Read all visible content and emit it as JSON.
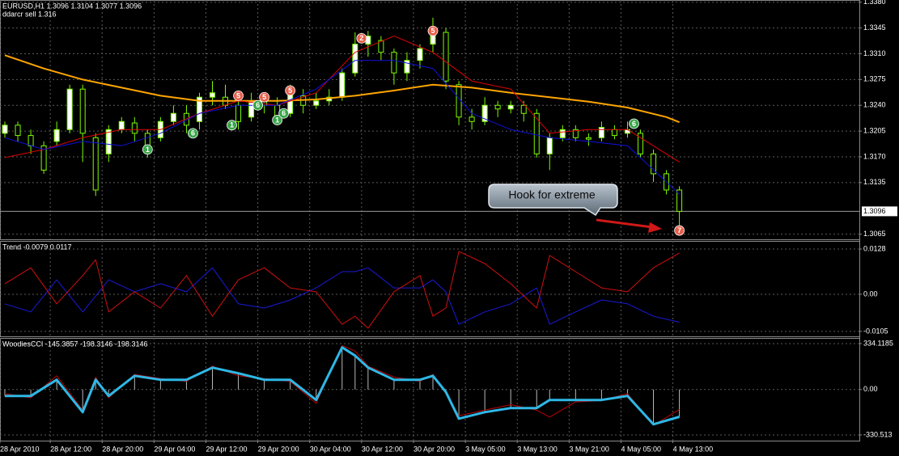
{
  "chart_data": [
    {
      "type": "candlestick",
      "title": "EURUSD,H1  1.3096 1.3104 1.3077 1.3096",
      "subtitle": "ddarcr sell 1.316",
      "annotation": "Hook for extreme",
      "xlim": [
        -0.75,
        131.75
      ],
      "ylim": [
        1.3058,
        1.3383
      ],
      "yticks": [
        {
          "value": 1.338,
          "label": "1.3380"
        },
        1.3345,
        {
          "value": 1.331,
          "label": "1.3310"
        },
        1.3275,
        {
          "value": 1.324,
          "label": "1.3240"
        },
        1.3205,
        {
          "value": 1.317,
          "label": "1.3170"
        },
        1.3135,
        1.3065
      ],
      "grid": true,
      "current_price": 1.3096,
      "up_color": "#ffffff",
      "down_color": "#000000",
      "wick_color": "#7cfc00",
      "x": [
        0,
        2,
        4,
        6,
        8,
        10,
        12,
        14,
        16,
        18,
        20,
        22,
        24,
        26,
        28,
        30,
        32,
        34,
        36,
        38,
        40,
        42,
        44,
        46,
        48,
        50,
        52,
        54,
        56,
        58,
        60,
        62,
        64,
        66,
        68,
        70,
        72,
        74,
        76,
        78,
        80,
        82,
        84,
        86,
        88,
        90,
        92,
        94,
        96,
        98,
        100,
        102,
        104
      ],
      "open": [
        1.3202,
        1.3213,
        1.3199,
        1.3185,
        1.3191,
        1.3207,
        1.3262,
        1.3196,
        1.3174,
        1.3207,
        1.3216,
        1.3202,
        1.3196,
        1.3218,
        1.3229,
        1.3218,
        1.3251,
        1.3251,
        1.324,
        1.3224,
        1.3246,
        1.324,
        1.3229,
        1.3253,
        1.324,
        1.3246,
        1.3251,
        1.3284,
        1.3323,
        1.3328,
        1.3312,
        1.3284,
        1.3301,
        1.3323,
        1.3339,
        1.3268,
        1.3224,
        1.3218,
        1.324,
        1.3235,
        1.324,
        1.3229,
        1.3174,
        1.3196,
        1.3207,
        1.3196,
        1.3196,
        1.3207,
        1.3202,
        1.3202,
        1.3174,
        1.3147,
        1.3125
      ],
      "high": [
        1.3218,
        1.3218,
        1.3207,
        1.3191,
        1.3218,
        1.3268,
        1.3268,
        1.3202,
        1.3213,
        1.3224,
        1.3224,
        1.3207,
        1.3224,
        1.324,
        1.324,
        1.3257,
        1.3273,
        1.3268,
        1.3251,
        1.3257,
        1.3257,
        1.3251,
        1.3268,
        1.3262,
        1.3257,
        1.3262,
        1.329,
        1.3339,
        1.3341,
        1.3334,
        1.3317,
        1.3312,
        1.3323,
        1.3359,
        1.3345,
        1.3273,
        1.3235,
        1.3251,
        1.3246,
        1.3246,
        1.3246,
        1.3235,
        1.3202,
        1.3213,
        1.3213,
        1.3202,
        1.3218,
        1.3213,
        1.3218,
        1.3207,
        1.318,
        1.3152,
        1.313
      ],
      "low": [
        1.3196,
        1.3191,
        1.3174,
        1.3147,
        1.3185,
        1.3202,
        1.3163,
        1.3117,
        1.3163,
        1.3202,
        1.3191,
        1.3169,
        1.3191,
        1.3213,
        1.3202,
        1.3207,
        1.324,
        1.3235,
        1.3207,
        1.3218,
        1.3229,
        1.3218,
        1.3224,
        1.3229,
        1.3235,
        1.324,
        1.3246,
        1.3279,
        1.3306,
        1.3301,
        1.3268,
        1.3273,
        1.329,
        1.3312,
        1.3262,
        1.3213,
        1.3207,
        1.3213,
        1.3224,
        1.3229,
        1.3218,
        1.3169,
        1.3152,
        1.3191,
        1.3191,
        1.3185,
        1.3191,
        1.3194,
        1.3196,
        1.3169,
        1.3136,
        1.3119,
        1.3077
      ],
      "close": [
        1.3213,
        1.3199,
        1.3185,
        1.3152,
        1.3207,
        1.3262,
        1.3202,
        1.3125,
        1.3207,
        1.3218,
        1.3202,
        1.318,
        1.3218,
        1.3229,
        1.3213,
        1.3251,
        1.3257,
        1.324,
        1.3218,
        1.3246,
        1.324,
        1.3224,
        1.3257,
        1.324,
        1.3246,
        1.3251,
        1.3284,
        1.3323,
        1.3334,
        1.3312,
        1.3284,
        1.3301,
        1.3317,
        1.3345,
        1.3273,
        1.3224,
        1.3218,
        1.324,
        1.3235,
        1.324,
        1.3229,
        1.3174,
        1.3196,
        1.3207,
        1.3196,
        1.3194,
        1.321,
        1.3199,
        1.3207,
        1.3174,
        1.3147,
        1.3125,
        1.3096
      ],
      "series": [
        {
          "color": "#ffa500",
          "line_width": 2,
          "x": [
            0,
            6,
            12,
            18,
            24,
            30,
            36,
            42,
            48,
            54,
            60,
            66,
            72,
            78,
            84,
            90,
            96,
            102,
            104
          ],
          "values": [
            1.3308,
            1.329,
            1.3275,
            1.3264,
            1.3253,
            1.3246,
            1.3246,
            1.3246,
            1.3248,
            1.3253,
            1.326,
            1.3268,
            1.3264,
            1.3257,
            1.3251,
            1.3245,
            1.3237,
            1.3224,
            1.3217
          ]
        },
        {
          "color": "#e00000",
          "line_width": 1,
          "x": [
            0,
            6,
            12,
            18,
            24,
            30,
            36,
            42,
            48,
            54,
            60,
            66,
            72,
            78,
            84,
            90,
            96,
            102,
            104
          ],
          "values": [
            1.3169,
            1.318,
            1.3196,
            1.3207,
            1.3207,
            1.3229,
            1.3246,
            1.324,
            1.3257,
            1.3312,
            1.3334,
            1.3312,
            1.3273,
            1.3262,
            1.3202,
            1.3207,
            1.3207,
            1.3174,
            1.3163
          ]
        },
        {
          "color": "#1010e0",
          "line_width": 1,
          "x": [
            0,
            6,
            12,
            18,
            24,
            30,
            36,
            42,
            48,
            54,
            60,
            66,
            72,
            78,
            84,
            90,
            96,
            102,
            104
          ],
          "values": [
            1.3196,
            1.318,
            1.3191,
            1.3185,
            1.3202,
            1.3229,
            1.324,
            1.324,
            1.3262,
            1.3301,
            1.3301,
            1.329,
            1.3229,
            1.3207,
            1.3196,
            1.3191,
            1.3185,
            1.3136,
            1.3119
          ]
        }
      ],
      "markers": [
        {
          "x": 22,
          "y": 1.318,
          "label": "1",
          "color": "#3aa64a"
        },
        {
          "x": 29,
          "y": 1.3202,
          "label": "6",
          "color": "#3aa64a"
        },
        {
          "x": 35,
          "y": 1.3213,
          "label": "1",
          "color": "#3aa64a"
        },
        {
          "x": 36,
          "y": 1.3253,
          "label": "5",
          "color": "#e8604c"
        },
        {
          "x": 39,
          "y": 1.324,
          "label": "6",
          "color": "#3aa64a"
        },
        {
          "x": 40,
          "y": 1.3251,
          "label": "5",
          "color": "#e8604c"
        },
        {
          "x": 42,
          "y": 1.322,
          "label": "1",
          "color": "#3aa64a"
        },
        {
          "x": 43,
          "y": 1.3229,
          "label": "6",
          "color": "#3aa64a"
        },
        {
          "x": 44,
          "y": 1.326,
          "label": "5",
          "color": "#e8604c"
        },
        {
          "x": 55,
          "y": 1.3331,
          "label": "2",
          "color": "#e8604c"
        },
        {
          "x": 66,
          "y": 1.3341,
          "label": "5",
          "color": "#e8604c"
        },
        {
          "x": 97,
          "y": 1.3215,
          "label": "6",
          "color": "#3aa64a"
        },
        {
          "x": 104,
          "y": 1.307,
          "label": "7",
          "color": "#e8604c"
        }
      ]
    },
    {
      "type": "line",
      "title": "Trend -0.0079 0.0117",
      "xlim": [
        -0.75,
        131.75
      ],
      "ylim": [
        -0.0119,
        0.0151
      ],
      "yticks": [
        0.0128,
        {
          "value": 0,
          "label": "0.00"
        },
        -0.0105
      ],
      "grid": true,
      "x": [
        0,
        4,
        8,
        12,
        14,
        16,
        20,
        24,
        28,
        32,
        36,
        40,
        44,
        48,
        52,
        54,
        56,
        60,
        64,
        66,
        68,
        70,
        74,
        78,
        82,
        84,
        88,
        92,
        96,
        100,
        104
      ],
      "series": [
        {
          "color": "#d01010",
          "line_width": 1,
          "values": [
            0.003,
            0.0075,
            -0.0027,
            0.0053,
            0.0098,
            -0.005,
            0.0007,
            -0.0039,
            0.0053,
            -0.0062,
            0.0041,
            0.0075,
            0.0018,
            0.0007,
            -0.0085,
            -0.0062,
            -0.0096,
            0.0007,
            0.0053,
            -0.0062,
            -0.0039,
            0.0121,
            0.0087,
            0.003,
            -0.0039,
            0.011,
            0.0064,
            0.0018,
            0.0007,
            0.0075,
            0.0117
          ]
        },
        {
          "color": "#1a1ad8",
          "line_width": 1,
          "values": [
            -0.0027,
            -0.005,
            0.0041,
            -0.005,
            -0.0005,
            0.0041,
            0.0007,
            0.003,
            0.0007,
            0.0075,
            -0.0027,
            -0.0039,
            -0.0016,
            0.0018,
            0.0064,
            0.0064,
            0.0075,
            0.0018,
            0.0018,
            0.0041,
            0.0007,
            -0.0085,
            -0.005,
            -0.0027,
            0.0018,
            -0.0085,
            -0.005,
            -0.0016,
            -0.0027,
            -0.0062,
            -0.0079
          ]
        }
      ]
    },
    {
      "type": "line",
      "title": "WoodiesCCI -145.3857 -198.3146 -198.3146",
      "xlim": [
        -0.75,
        131.75
      ],
      "ylim": [
        -372,
        375
      ],
      "yticks": [
        334.1185,
        {
          "value": 0,
          "label": "0.00"
        },
        -330.513
      ],
      "grid": true,
      "histogram": true,
      "x": [
        0,
        4,
        8,
        12,
        14,
        16,
        20,
        24,
        28,
        32,
        36,
        40,
        44,
        48,
        52,
        54,
        56,
        60,
        64,
        66,
        68,
        70,
        74,
        78,
        82,
        84,
        88,
        92,
        96,
        100,
        104
      ],
      "xticks": [
        {
          "value": -0.75,
          "label": "28 Apr 2010"
        },
        {
          "value": 7,
          "label": "28 Apr 12:00"
        },
        {
          "value": 15,
          "label": "28 Apr 20:00"
        },
        {
          "value": 23,
          "label": "29 Apr 04:00"
        },
        {
          "value": 31,
          "label": "29 Apr 12:00"
        },
        {
          "value": 39,
          "label": "29 Apr 20:00"
        },
        {
          "value": 47,
          "label": "30 Apr 04:00"
        },
        {
          "value": 55,
          "label": "30 Apr 12:00"
        },
        {
          "value": 63,
          "label": "30 Apr 20:00"
        },
        {
          "value": 71,
          "label": "3 May 05:00"
        },
        {
          "value": 79,
          "label": "3 May 13:00"
        },
        {
          "value": 87,
          "label": "3 May 21:00"
        },
        {
          "value": 95,
          "label": "4 May 05:00"
        },
        {
          "value": 103,
          "label": "4 May 13:00"
        }
      ],
      "series": [
        {
          "color": "#2eb8e6",
          "line_width": 3,
          "values": [
            -47,
            -47,
            71,
            -165,
            71,
            -47,
            100,
            71,
            71,
            159,
            118,
            71,
            71,
            -76,
            306,
            247,
            159,
            71,
            71,
            100,
            -18,
            -212,
            -165,
            -135,
            -135,
            -76,
            -76,
            -76,
            -47,
            -253,
            -198.3146
          ]
        },
        {
          "color": "#c00000",
          "line_width": 1,
          "values": [
            -30,
            -60,
            100,
            -150,
            90,
            -60,
            110,
            80,
            60,
            170,
            100,
            80,
            60,
            -100,
            320,
            280,
            170,
            90,
            60,
            110,
            -30,
            -190,
            -150,
            -110,
            -150,
            -200,
            -90,
            -80,
            -30,
            -260,
            -145.3857
          ]
        }
      ]
    }
  ]
}
